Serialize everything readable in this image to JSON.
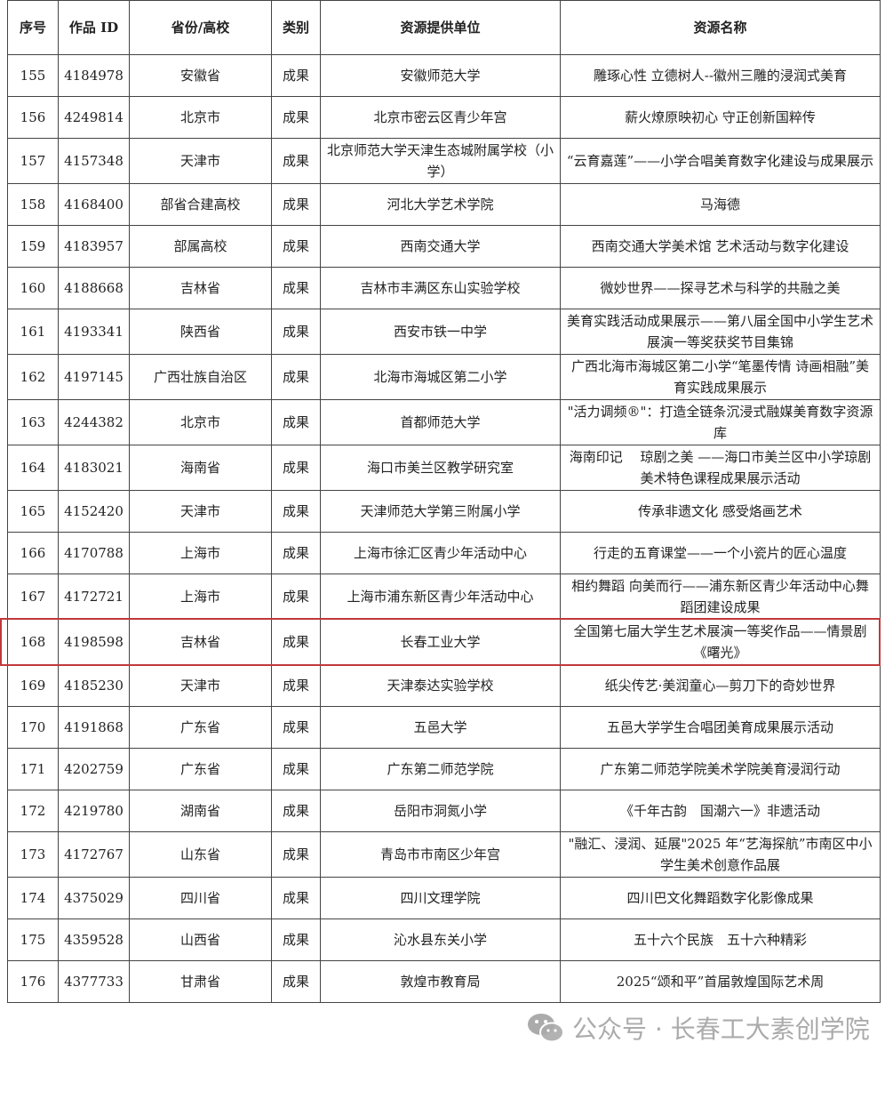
{
  "headers": [
    "序号",
    "作品 ID",
    "省份/高校",
    "类别",
    "资源提供单位",
    "资源名称"
  ],
  "rows": [
    {
      "no": "155",
      "id": "4184978",
      "region": "安徽省",
      "type": "成果",
      "unit": "安徽师范大学",
      "name": "雕琢心性 立德树人--徽州三雕的浸润式美育"
    },
    {
      "no": "156",
      "id": "4249814",
      "region": "北京市",
      "type": "成果",
      "unit": "北京市密云区青少年宫",
      "name": "薪火燎原映初心 守正创新国粹传"
    },
    {
      "no": "157",
      "id": "4157348",
      "region": "天津市",
      "type": "成果",
      "unit": "北京师范大学天津生态城附属学校（小学）",
      "name": "“云育嘉莲”——小学合唱美育数字化建设与成果展示"
    },
    {
      "no": "158",
      "id": "4168400",
      "region": "部省合建高校",
      "type": "成果",
      "unit": "河北大学艺术学院",
      "name": "马海德"
    },
    {
      "no": "159",
      "id": "4183957",
      "region": "部属高校",
      "type": "成果",
      "unit": "西南交通大学",
      "name": "西南交通大学美术馆 艺术活动与数字化建设"
    },
    {
      "no": "160",
      "id": "4188668",
      "region": "吉林省",
      "type": "成果",
      "unit": "吉林市丰满区东山实验学校",
      "name": "微妙世界——探寻艺术与科学的共融之美"
    },
    {
      "no": "161",
      "id": "4193341",
      "region": "陕西省",
      "type": "成果",
      "unit": "西安市铁一中学",
      "name": "美育实践活动成果展示——第八届全国中小学生艺术展演一等奖获奖节目集锦"
    },
    {
      "no": "162",
      "id": "4197145",
      "region": "广西壮族自治区",
      "type": "成果",
      "unit": "北海市海城区第二小学",
      "name": "广西北海市海城区第二小学“笔墨传情 诗画相融”美育实践成果展示"
    },
    {
      "no": "163",
      "id": "4244382",
      "region": "北京市",
      "type": "成果",
      "unit": "首都师范大学",
      "name": "\"活力调频®\"：打造全链条沉浸式融媒美育数字资源库"
    },
    {
      "no": "164",
      "id": "4183021",
      "region": "海南省",
      "type": "成果",
      "unit": "海口市美兰区教学研究室",
      "name": "海南印记　 琼剧之美 ——海口市美兰区中小学琼剧美术特色课程成果展示活动"
    },
    {
      "no": "165",
      "id": "4152420",
      "region": "天津市",
      "type": "成果",
      "unit": "天津师范大学第三附属小学",
      "name": "传承非遗文化 感受烙画艺术"
    },
    {
      "no": "166",
      "id": "4170788",
      "region": "上海市",
      "type": "成果",
      "unit": "上海市徐汇区青少年活动中心",
      "name": "行走的五育课堂——一个小瓷片的匠心温度"
    },
    {
      "no": "167",
      "id": "4172721",
      "region": "上海市",
      "type": "成果",
      "unit": "上海市浦东新区青少年活动中心",
      "name": "相约舞蹈 向美而行——浦东新区青少年活动中心舞蹈团建设成果"
    },
    {
      "no": "168",
      "id": "4198598",
      "region": "吉林省",
      "type": "成果",
      "unit": "长春工业大学",
      "name": "全国第七届大学生艺术展演一等奖作品——情景剧《曙光》",
      "highlighted": true
    },
    {
      "no": "169",
      "id": "4185230",
      "region": "天津市",
      "type": "成果",
      "unit": "天津泰达实验学校",
      "name": "纸尖传艺·美润童心—剪刀下的奇妙世界"
    },
    {
      "no": "170",
      "id": "4191868",
      "region": "广东省",
      "type": "成果",
      "unit": "五邑大学",
      "name": "五邑大学学生合唱团美育成果展示活动"
    },
    {
      "no": "171",
      "id": "4202759",
      "region": "广东省",
      "type": "成果",
      "unit": "广东第二师范学院",
      "name": "广东第二师范学院美术学院美育浸润行动"
    },
    {
      "no": "172",
      "id": "4219780",
      "region": "湖南省",
      "type": "成果",
      "unit": "岳阳市洞氮小学",
      "name": "《千年古韵　国潮六一》非遗活动"
    },
    {
      "no": "173",
      "id": "4172767",
      "region": "山东省",
      "type": "成果",
      "unit": "青岛市市南区少年宫",
      "name": "\"融汇、浸润、延展\"2025 年“艺海探航”市南区中小学生美术创意作品展"
    },
    {
      "no": "174",
      "id": "4375029",
      "region": "四川省",
      "type": "成果",
      "unit": "四川文理学院",
      "name": "四川巴文化舞蹈数字化影像成果"
    },
    {
      "no": "175",
      "id": "4359528",
      "region": "山西省",
      "type": "成果",
      "unit": "沁水县东关小学",
      "name": "五十六个民族　五十六种精彩"
    },
    {
      "no": "176",
      "id": "4377733",
      "region": "甘肃省",
      "type": "成果",
      "unit": "敦煌市教育局",
      "name": "2025“颂和平”首届敦煌国际艺术周"
    }
  ],
  "highlight_color": "#c0393b",
  "watermark": {
    "icon": "wechat-icon",
    "text": "公众号 · 长春工大素创学院"
  }
}
